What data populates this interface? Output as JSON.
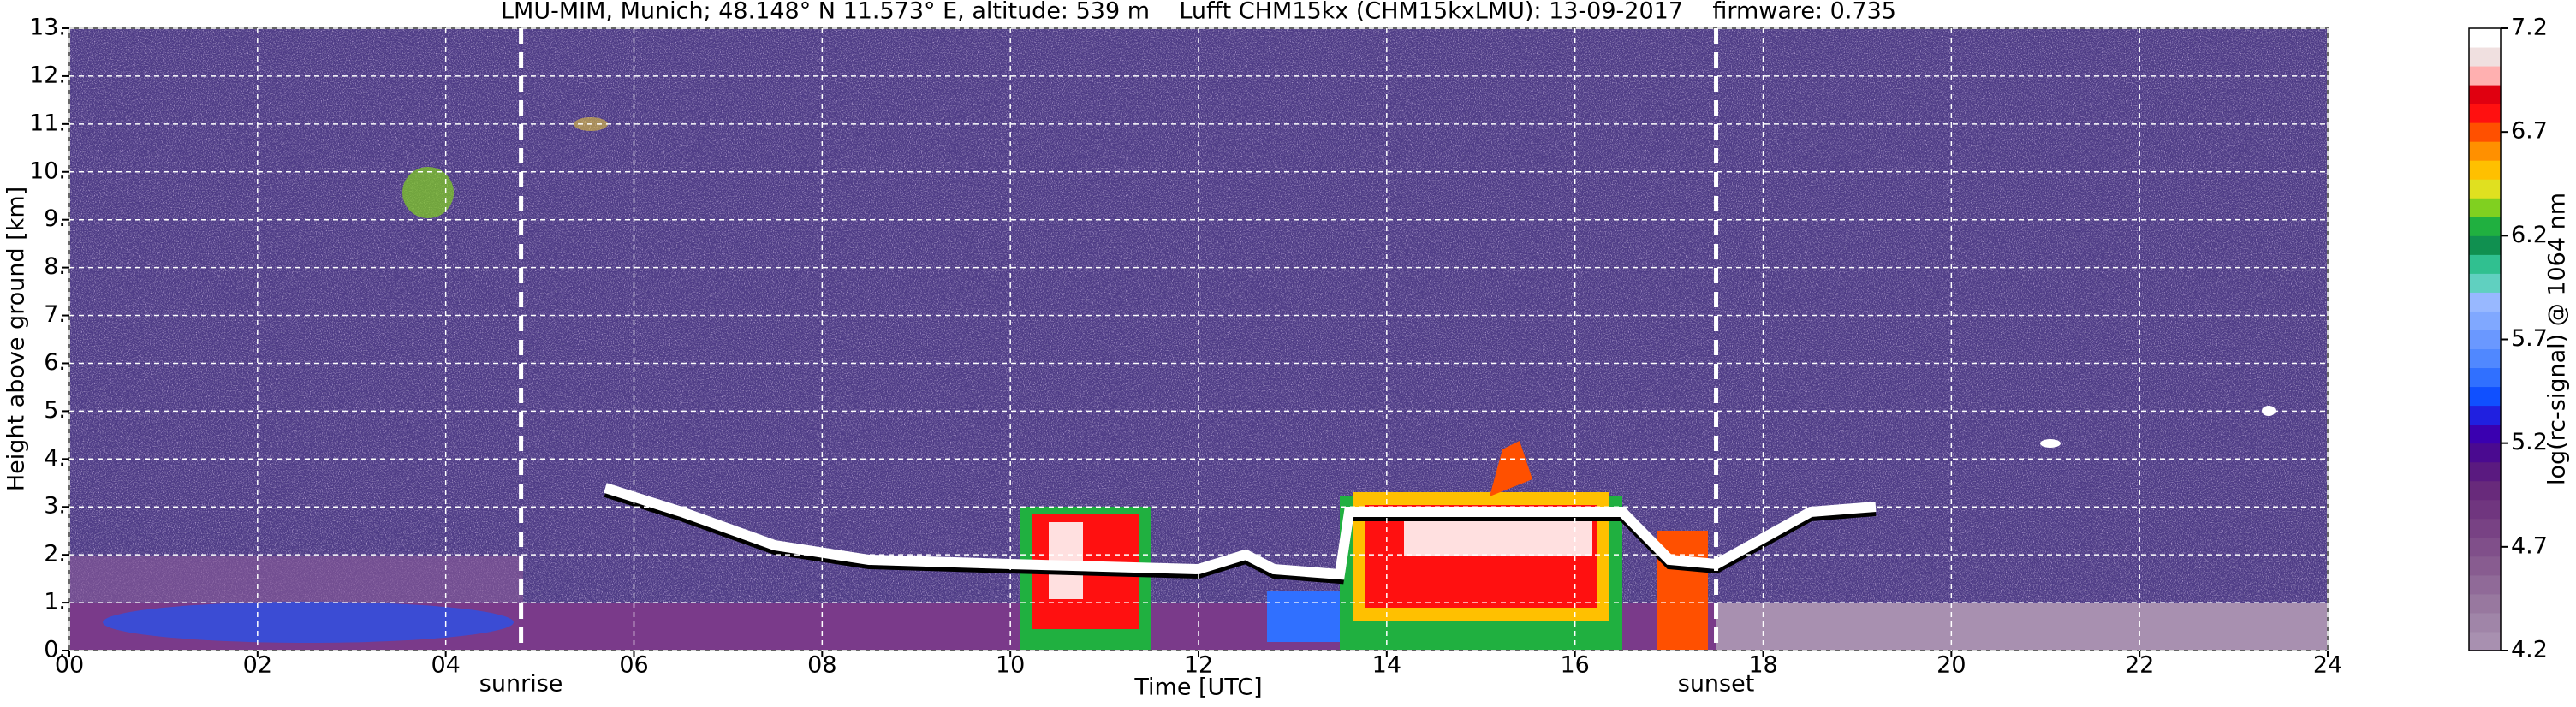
{
  "chart_data": {
    "type": "heatmap",
    "title": "LMU-MIM, Munich; 48.148° N 11.573° E, altitude: 539 m    Lufft CHM15kx (CHM15kxLMU): 13-09-2017    firmware: 0.735",
    "xlabel": "Time [UTC]",
    "ylabel": "Height above ground [km]",
    "xlim": [
      0,
      24
    ],
    "xticks": [
      {
        "value": 0,
        "label": "00"
      },
      {
        "value": 2,
        "label": "02"
      },
      {
        "value": 4,
        "label": "04"
      },
      {
        "value": 6,
        "label": "06"
      },
      {
        "value": 8,
        "label": "08"
      },
      {
        "value": 10,
        "label": "10"
      },
      {
        "value": 12,
        "label": "12"
      },
      {
        "value": 14,
        "label": "14"
      },
      {
        "value": 16,
        "label": "16"
      },
      {
        "value": 18,
        "label": "18"
      },
      {
        "value": 20,
        "label": "20"
      },
      {
        "value": 22,
        "label": "22"
      },
      {
        "value": 24,
        "label": "24"
      }
    ],
    "ylim": [
      0,
      13
    ],
    "yticks": [
      {
        "value": 0,
        "label": "0."
      },
      {
        "value": 1,
        "label": "1."
      },
      {
        "value": 2,
        "label": "2."
      },
      {
        "value": 3,
        "label": "3."
      },
      {
        "value": 4,
        "label": "4."
      },
      {
        "value": 5,
        "label": "5."
      },
      {
        "value": 6,
        "label": "6."
      },
      {
        "value": 7,
        "label": "7."
      },
      {
        "value": 8,
        "label": "8."
      },
      {
        "value": 9,
        "label": "9."
      },
      {
        "value": 10,
        "label": "10."
      },
      {
        "value": 11,
        "label": "11."
      },
      {
        "value": 12,
        "label": "12."
      },
      {
        "value": 13,
        "label": "13."
      }
    ],
    "grid": true,
    "annotations": [
      {
        "text": "sunrise",
        "x": 4.8
      },
      {
        "text": "sunset",
        "x": 17.5
      }
    ],
    "colorbar": {
      "label": "log(rc-signal) @ 1064 nm",
      "clim": [
        4.2,
        7.2
      ],
      "ticks": [
        4.2,
        4.7,
        5.2,
        5.7,
        6.2,
        6.7,
        7.2
      ],
      "colormap": [
        "#a890b0",
        "#a085a8",
        "#98789f",
        "#906a98",
        "#885c90",
        "#804f8a",
        "#784284",
        "#70367f",
        "#682a7b",
        "#5a1a80",
        "#4a0a90",
        "#3a00b0",
        "#2020e0",
        "#1050ff",
        "#3070ff",
        "#5088ff",
        "#6a98ff",
        "#80a8ff",
        "#98b8ff",
        "#60d0c0",
        "#30c090",
        "#109050",
        "#20b040",
        "#80d020",
        "#e0e020",
        "#ffc000",
        "#ff9000",
        "#ff5000",
        "#ff1010",
        "#e00010",
        "#ffb0b0",
        "#f0e0e0",
        "#ffffff"
      ]
    }
  }
}
